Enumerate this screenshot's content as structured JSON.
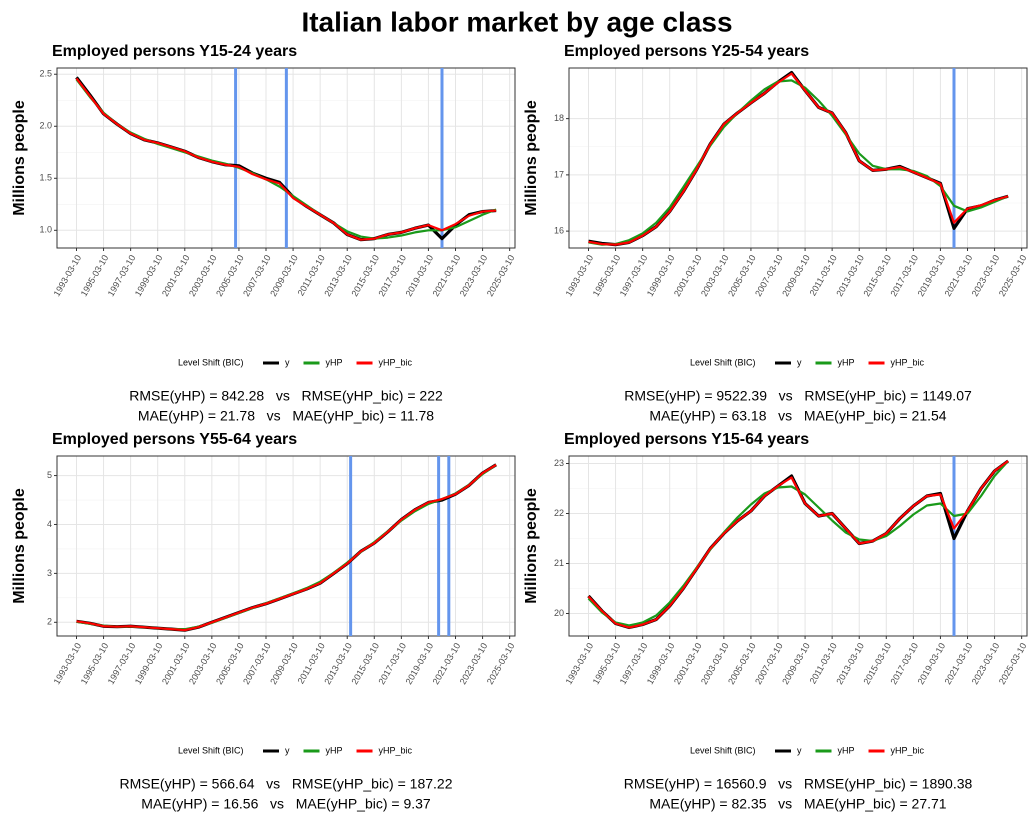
{
  "title": "Italian labor market by age class",
  "chart_data": [
    {
      "type": "line",
      "title": "Employed persons Y15-24 years",
      "y_label": "Millions people",
      "legend_title": "Level Shift (BIC)",
      "grid": true,
      "xlim": [
        "1991-10-01",
        "2025-08-01"
      ],
      "ylim": [
        0.83,
        2.56
      ],
      "yticks": [
        {
          "value": 1,
          "label": "1.0"
        },
        1.5,
        {
          "value": 2,
          "label": "2.0"
        },
        2.5
      ],
      "xticks": [
        "1993-03-10",
        "1995-03-10",
        "1997-03-10",
        "1999-03-10",
        "2001-03-10",
        "2003-03-10",
        "2005-03-10",
        "2007-03-10",
        "2009-03-10",
        "2011-03-10",
        "2013-03-10",
        "2015-03-10",
        "2017-03-10",
        "2019-03-10",
        "2021-03-10",
        "2023-03-10",
        "2025-03-10"
      ],
      "x": [
        "1993-03-10",
        "1994-03-10",
        "1995-03-10",
        "1996-03-10",
        "1997-03-10",
        "1998-03-10",
        "1999-03-10",
        "2000-03-10",
        "2001-03-10",
        "2002-03-10",
        "2003-03-10",
        "2004-03-10",
        "2005-03-10",
        "2006-03-10",
        "2007-03-10",
        "2008-03-10",
        "2009-03-10",
        "2010-03-10",
        "2011-03-10",
        "2012-03-10",
        "2013-03-10",
        "2014-03-10",
        "2015-03-10",
        "2016-03-10",
        "2017-03-10",
        "2018-03-10",
        "2019-03-10",
        "2020-03-10",
        "2021-03-10",
        "2022-03-10",
        "2023-03-10",
        "2024-03-10"
      ],
      "series": [
        {
          "name": "y",
          "color": "#000000",
          "values": [
            2.47,
            2.3,
            2.12,
            2.02,
            1.93,
            1.87,
            1.84,
            1.8,
            1.76,
            1.7,
            1.66,
            1.63,
            1.62,
            1.55,
            1.5,
            1.46,
            1.32,
            1.23,
            1.15,
            1.07,
            0.96,
            0.91,
            0.92,
            0.96,
            0.98,
            1.02,
            1.05,
            0.92,
            1.05,
            1.15,
            1.18,
            1.19
          ]
        },
        {
          "name": "yHP",
          "color": "#1a9a1a",
          "values": [
            2.45,
            2.28,
            2.13,
            2.02,
            1.94,
            1.88,
            1.83,
            1.79,
            1.75,
            1.71,
            1.67,
            1.64,
            1.6,
            1.55,
            1.49,
            1.42,
            1.33,
            1.24,
            1.15,
            1.07,
            0.99,
            0.94,
            0.92,
            0.93,
            0.95,
            0.98,
            1.0,
            1.0,
            1.03,
            1.09,
            1.15,
            1.2
          ]
        },
        {
          "name": "yHP_bic",
          "color": "#ff0000",
          "values": [
            2.46,
            2.29,
            2.12,
            2.02,
            1.93,
            1.87,
            1.84,
            1.8,
            1.76,
            1.7,
            1.66,
            1.63,
            1.61,
            1.54,
            1.49,
            1.45,
            1.31,
            1.23,
            1.15,
            1.07,
            0.96,
            0.91,
            0.92,
            0.96,
            0.98,
            1.02,
            1.05,
            1.0,
            1.06,
            1.14,
            1.18,
            1.19
          ]
        }
      ],
      "level_shifts": [
        "2004-12-10",
        "2008-09-10",
        "2020-03-10"
      ],
      "shift_color": "#6495ed",
      "notes": [
        "RMSE(yHP) = 842.28   vs   RMSE(yHP_bic) = 222",
        "MAE(yHP) = 21.78   vs   MAE(yHP_bic) = 11.78"
      ]
    },
    {
      "type": "line",
      "title": "Employed persons Y25-54 years",
      "y_label": "Millions people",
      "legend_title": "Level Shift (BIC)",
      "grid": true,
      "xlim": [
        "1991-10-01",
        "2025-08-01"
      ],
      "ylim": [
        15.7,
        18.9
      ],
      "yticks": [
        16,
        17,
        18
      ],
      "xticks": [
        "1993-03-10",
        "1995-03-10",
        "1997-03-10",
        "1999-03-10",
        "2001-03-10",
        "2003-03-10",
        "2005-03-10",
        "2007-03-10",
        "2009-03-10",
        "2011-03-10",
        "2013-03-10",
        "2015-03-10",
        "2017-03-10",
        "2019-03-10",
        "2021-03-10",
        "2023-03-10",
        "2025-03-10"
      ],
      "x": [
        "1993-03-10",
        "1994-03-10",
        "1995-03-10",
        "1996-03-10",
        "1997-03-10",
        "1998-03-10",
        "1999-03-10",
        "2000-03-10",
        "2001-03-10",
        "2002-03-10",
        "2003-03-10",
        "2004-03-10",
        "2005-03-10",
        "2006-03-10",
        "2007-03-10",
        "2008-03-10",
        "2009-03-10",
        "2010-03-10",
        "2011-03-10",
        "2012-03-10",
        "2013-03-10",
        "2014-03-10",
        "2015-03-10",
        "2016-03-10",
        "2017-03-10",
        "2018-03-10",
        "2019-03-10",
        "2020-03-10",
        "2021-03-10",
        "2022-03-10",
        "2023-03-10",
        "2024-03-10"
      ],
      "series": [
        {
          "name": "y",
          "color": "#000000",
          "values": [
            15.82,
            15.78,
            15.76,
            15.8,
            15.92,
            16.08,
            16.35,
            16.7,
            17.1,
            17.55,
            17.9,
            18.1,
            18.28,
            18.45,
            18.65,
            18.82,
            18.5,
            18.2,
            18.1,
            17.75,
            17.25,
            17.08,
            17.1,
            17.15,
            17.05,
            16.95,
            16.85,
            16.05,
            16.4,
            16.45,
            16.55,
            16.62
          ]
        },
        {
          "name": "yHP",
          "color": "#1a9a1a",
          "values": [
            15.8,
            15.76,
            15.77,
            15.84,
            15.96,
            16.15,
            16.42,
            16.78,
            17.15,
            17.52,
            17.85,
            18.1,
            18.32,
            18.52,
            18.66,
            18.68,
            18.55,
            18.32,
            18.05,
            17.72,
            17.38,
            17.16,
            17.1,
            17.1,
            17.07,
            16.98,
            16.8,
            16.45,
            16.35,
            16.42,
            16.52,
            16.62
          ]
        },
        {
          "name": "yHP_bic",
          "color": "#ff0000",
          "values": [
            15.81,
            15.77,
            15.76,
            15.8,
            15.92,
            16.08,
            16.35,
            16.7,
            17.1,
            17.55,
            17.9,
            18.1,
            18.28,
            18.45,
            18.64,
            18.8,
            18.5,
            18.2,
            18.1,
            17.75,
            17.25,
            17.08,
            17.1,
            17.14,
            17.05,
            16.95,
            16.84,
            16.15,
            16.4,
            16.46,
            16.55,
            16.62
          ]
        }
      ],
      "level_shifts": [
        "2020-03-10"
      ],
      "shift_color": "#6495ed",
      "notes": [
        "RMSE(yHP) = 9522.39   vs   RMSE(yHP_bic) = 1149.07",
        "MAE(yHP) = 63.18   vs   MAE(yHP_bic) = 21.54"
      ]
    },
    {
      "type": "line",
      "title": "Employed persons Y55-64 years",
      "y_label": "Millions people",
      "legend_title": "Level Shift (BIC)",
      "grid": true,
      "xlim": [
        "1991-10-01",
        "2025-08-01"
      ],
      "ylim": [
        1.72,
        5.4
      ],
      "yticks": [
        2,
        3,
        4,
        5
      ],
      "xticks": [
        "1993-03-10",
        "1995-03-10",
        "1997-03-10",
        "1999-03-10",
        "2001-03-10",
        "2003-03-10",
        "2005-03-10",
        "2007-03-10",
        "2009-03-10",
        "2011-03-10",
        "2013-03-10",
        "2015-03-10",
        "2017-03-10",
        "2019-03-10",
        "2021-03-10",
        "2023-03-10",
        "2025-03-10"
      ],
      "x": [
        "1993-03-10",
        "1994-03-10",
        "1995-03-10",
        "1996-03-10",
        "1997-03-10",
        "1998-03-10",
        "1999-03-10",
        "2000-03-10",
        "2001-03-10",
        "2002-03-10",
        "2003-03-10",
        "2004-03-10",
        "2005-03-10",
        "2006-03-10",
        "2007-03-10",
        "2008-03-10",
        "2009-03-10",
        "2010-03-10",
        "2011-03-10",
        "2012-03-10",
        "2013-03-10",
        "2014-03-10",
        "2015-03-10",
        "2016-03-10",
        "2017-03-10",
        "2018-03-10",
        "2019-03-10",
        "2020-03-10",
        "2021-03-10",
        "2022-03-10",
        "2023-03-10",
        "2024-03-10"
      ],
      "series": [
        {
          "name": "y",
          "color": "#000000",
          "values": [
            2.02,
            1.98,
            1.92,
            1.91,
            1.92,
            1.9,
            1.88,
            1.86,
            1.84,
            1.9,
            2.0,
            2.1,
            2.2,
            2.3,
            2.38,
            2.48,
            2.58,
            2.68,
            2.8,
            3.0,
            3.2,
            3.45,
            3.62,
            3.85,
            4.1,
            4.3,
            4.45,
            4.5,
            4.62,
            4.8,
            5.05,
            5.22
          ]
        },
        {
          "name": "yHP",
          "color": "#1a9a1a",
          "values": [
            2.01,
            1.97,
            1.93,
            1.91,
            1.91,
            1.9,
            1.88,
            1.86,
            1.86,
            1.91,
            1.99,
            2.09,
            2.19,
            2.29,
            2.39,
            2.49,
            2.59,
            2.7,
            2.83,
            3.01,
            3.22,
            3.44,
            3.64,
            3.86,
            4.08,
            4.27,
            4.42,
            4.52,
            4.63,
            4.81,
            5.03,
            5.22
          ]
        },
        {
          "name": "yHP_bic",
          "color": "#ff0000",
          "values": [
            2.02,
            1.98,
            1.92,
            1.91,
            1.92,
            1.9,
            1.88,
            1.86,
            1.84,
            1.9,
            2.0,
            2.1,
            2.2,
            2.3,
            2.38,
            2.48,
            2.58,
            2.68,
            2.8,
            3.0,
            3.2,
            3.45,
            3.62,
            3.85,
            4.1,
            4.3,
            4.45,
            4.52,
            4.62,
            4.8,
            5.05,
            5.22
          ]
        }
      ],
      "level_shifts": [
        "2013-06-10",
        "2019-12-10",
        "2020-09-10"
      ],
      "shift_color": "#6495ed",
      "notes": [
        "RMSE(yHP) = 566.64   vs   RMSE(yHP_bic) = 187.22",
        "MAE(yHP) = 16.56   vs   MAE(yHP_bic) = 9.37"
      ]
    },
    {
      "type": "line",
      "title": "Employed persons Y15-64 years",
      "y_label": "Millions people",
      "legend_title": "Level Shift (BIC)",
      "grid": true,
      "xlim": [
        "1991-10-01",
        "2025-08-01"
      ],
      "ylim": [
        19.55,
        23.15
      ],
      "yticks": [
        20,
        21,
        22,
        23
      ],
      "xticks": [
        "1993-03-10",
        "1995-03-10",
        "1997-03-10",
        "1999-03-10",
        "2001-03-10",
        "2003-03-10",
        "2005-03-10",
        "2007-03-10",
        "2009-03-10",
        "2011-03-10",
        "2013-03-10",
        "2015-03-10",
        "2017-03-10",
        "2019-03-10",
        "2021-03-10",
        "2023-03-10",
        "2025-03-10"
      ],
      "x": [
        "1993-03-10",
        "1994-03-10",
        "1995-03-10",
        "1996-03-10",
        "1997-03-10",
        "1998-03-10",
        "1999-03-10",
        "2000-03-10",
        "2001-03-10",
        "2002-03-10",
        "2003-03-10",
        "2004-03-10",
        "2005-03-10",
        "2006-03-10",
        "2007-03-10",
        "2008-03-10",
        "2009-03-10",
        "2010-03-10",
        "2011-03-10",
        "2012-03-10",
        "2013-03-10",
        "2014-03-10",
        "2015-03-10",
        "2016-03-10",
        "2017-03-10",
        "2018-03-10",
        "2019-03-10",
        "2020-03-10",
        "2021-03-10",
        "2022-03-10",
        "2023-03-10",
        "2024-03-10"
      ],
      "series": [
        {
          "name": "y",
          "color": "#000000",
          "values": [
            20.35,
            20.05,
            19.8,
            19.72,
            19.78,
            19.88,
            20.15,
            20.5,
            20.9,
            21.3,
            21.6,
            21.85,
            22.05,
            22.35,
            22.55,
            22.75,
            22.2,
            21.95,
            22.0,
            21.7,
            21.4,
            21.45,
            21.6,
            21.9,
            22.15,
            22.35,
            22.4,
            21.5,
            22.05,
            22.5,
            22.85,
            23.05
          ]
        },
        {
          "name": "yHP",
          "color": "#1a9a1a",
          "values": [
            20.3,
            20.02,
            19.82,
            19.76,
            19.82,
            19.96,
            20.22,
            20.55,
            20.92,
            21.28,
            21.62,
            21.92,
            22.18,
            22.4,
            22.52,
            22.54,
            22.38,
            22.12,
            21.86,
            21.62,
            21.48,
            21.45,
            21.55,
            21.75,
            21.98,
            22.16,
            22.2,
            21.95,
            22.0,
            22.35,
            22.75,
            23.05
          ]
        },
        {
          "name": "yHP_bic",
          "color": "#ff0000",
          "values": [
            20.34,
            20.05,
            19.8,
            19.72,
            19.78,
            19.88,
            20.15,
            20.5,
            20.9,
            21.3,
            21.6,
            21.85,
            22.05,
            22.35,
            22.55,
            22.72,
            22.2,
            21.95,
            22.0,
            21.7,
            21.4,
            21.45,
            21.6,
            21.9,
            22.15,
            22.35,
            22.38,
            21.7,
            22.05,
            22.5,
            22.85,
            23.05
          ]
        }
      ],
      "level_shifts": [
        "2020-03-10"
      ],
      "shift_color": "#6495ed",
      "notes": [
        "RMSE(yHP) = 16560.9   vs   RMSE(yHP_bic) = 1890.38",
        "MAE(yHP) = 82.35   vs   MAE(yHP_bic) = 27.71"
      ]
    }
  ]
}
